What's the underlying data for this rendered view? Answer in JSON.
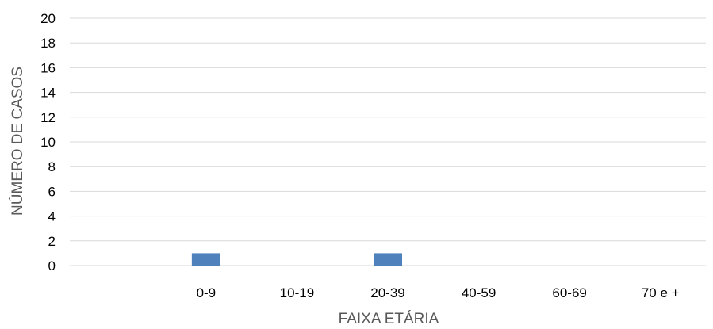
{
  "chart_data": {
    "type": "bar",
    "title": "",
    "xlabel": "FAIXA ETÁRIA",
    "ylabel": "NÚMERO DE CASOS",
    "categories": [
      "",
      "0-9",
      "10-19",
      "20-39",
      "40-59",
      "60-69",
      "70 e +"
    ],
    "values": [
      0,
      1,
      0,
      1,
      0,
      0,
      0
    ],
    "ylim": [
      0,
      20
    ],
    "yticks": [
      0,
      2,
      4,
      6,
      8,
      10,
      12,
      14,
      16,
      18,
      20
    ],
    "grid": true,
    "legend": "none",
    "bar_color": "#4f81bd"
  }
}
